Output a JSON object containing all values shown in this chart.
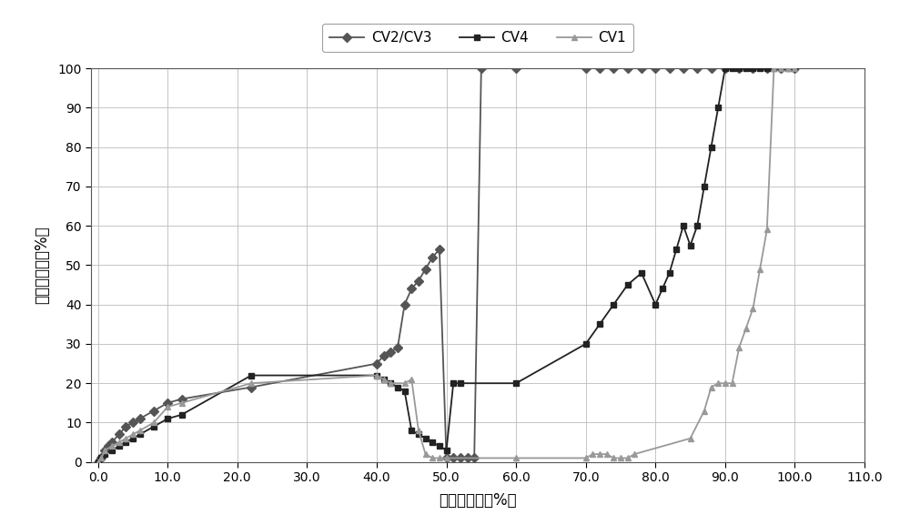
{
  "title": "",
  "xlabel": "总阀位指令（%）",
  "ylabel": "高调阀开度（%）",
  "xlim": [
    -1,
    110
  ],
  "ylim": [
    0,
    100
  ],
  "xticks": [
    0.0,
    10.0,
    20.0,
    30.0,
    40.0,
    50.0,
    60.0,
    70.0,
    80.0,
    90.0,
    100.0,
    110.0
  ],
  "yticks": [
    0,
    10,
    20,
    30,
    40,
    50,
    60,
    70,
    80,
    90,
    100
  ],
  "cv23_color": "#555555",
  "cv4_color": "#222222",
  "cv1_color": "#999999",
  "cv23_label": "CV2/CV3",
  "cv4_label": "CV4",
  "cv1_label": "CV1",
  "cv23_x": [
    0,
    0.5,
    1.0,
    1.5,
    2.0,
    3.0,
    4.0,
    5.0,
    6.0,
    8.0,
    10.0,
    12.0,
    22.0,
    40.0,
    41.0,
    42.0,
    43.0,
    44.0,
    45.0,
    46.0,
    47.0,
    48.0,
    49.0,
    50.0,
    51.0,
    52.0,
    53.0,
    54.0,
    55.0,
    60.0,
    70.0,
    72.0,
    74.0,
    76.0,
    78.0,
    80.0,
    82.0,
    84.0,
    86.0,
    88.0,
    90.0,
    92.0,
    94.0,
    96.0,
    98.0,
    100.0
  ],
  "cv23_y": [
    0,
    1,
    3,
    4,
    5,
    7,
    9,
    10,
    11,
    13,
    15,
    16,
    19,
    25,
    27,
    28,
    29,
    40,
    44,
    46,
    49,
    52,
    54,
    1,
    1,
    1,
    1,
    1,
    100,
    100,
    100,
    100,
    100,
    100,
    100,
    100,
    100,
    100,
    100,
    100,
    100,
    100,
    100,
    100,
    100,
    100
  ],
  "cv4_x": [
    0,
    0.5,
    1.0,
    2.0,
    3.0,
    4.0,
    5.0,
    6.0,
    8.0,
    10.0,
    12.0,
    22.0,
    40.0,
    41.0,
    42.0,
    43.0,
    44.0,
    45.0,
    46.0,
    47.0,
    48.0,
    49.0,
    50.0,
    51.0,
    52.0,
    60.0,
    70.0,
    72.0,
    74.0,
    76.0,
    78.0,
    80.0,
    81.0,
    82.0,
    83.0,
    84.0,
    85.0,
    86.0,
    87.0,
    88.0,
    89.0,
    90.0,
    91.0,
    92.0,
    93.0,
    94.0,
    95.0,
    96.0,
    97.0,
    98.0,
    99.0,
    100.0
  ],
  "cv4_y": [
    0,
    1,
    2,
    3,
    4,
    5,
    6,
    7,
    9,
    11,
    12,
    22,
    22,
    21,
    20,
    19,
    18,
    8,
    7,
    6,
    5,
    4,
    3,
    20,
    20,
    20,
    30,
    35,
    40,
    45,
    48,
    40,
    44,
    48,
    54,
    60,
    55,
    60,
    70,
    80,
    90,
    100,
    100,
    100,
    100,
    100,
    100,
    100,
    100,
    100,
    100,
    100
  ],
  "cv1_x": [
    0,
    0.5,
    1.0,
    2.0,
    3.0,
    4.0,
    5.0,
    6.0,
    8.0,
    10.0,
    12.0,
    22.0,
    40.0,
    41.0,
    42.0,
    44.0,
    45.0,
    46.0,
    47.0,
    48.0,
    49.0,
    50.0,
    60.0,
    70.0,
    71.0,
    72.0,
    73.0,
    74.0,
    75.0,
    76.0,
    77.0,
    85.0,
    87.0,
    88.0,
    89.0,
    90.0,
    91.0,
    92.0,
    93.0,
    94.0,
    95.0,
    96.0,
    97.0,
    98.0,
    99.0,
    100.0
  ],
  "cv1_y": [
    0,
    1,
    3,
    4,
    5,
    6,
    7,
    8,
    10,
    14,
    15,
    20,
    22,
    21,
    20,
    20,
    21,
    8,
    2,
    1,
    1,
    1,
    1,
    1,
    2,
    2,
    2,
    1,
    1,
    1,
    2,
    6,
    13,
    19,
    20,
    20,
    20,
    29,
    34,
    39,
    49,
    59,
    100,
    100,
    100,
    100
  ],
  "background_color": "#ffffff",
  "grid_color": "#bbbbbb",
  "fontsize_axis_label": 12,
  "fontsize_tick": 10,
  "linewidth": 1.3,
  "markersize": 5
}
